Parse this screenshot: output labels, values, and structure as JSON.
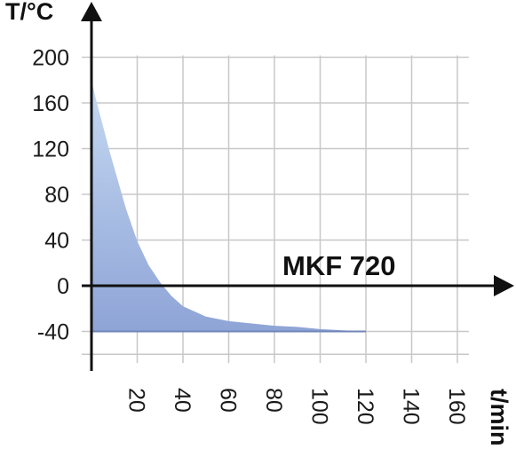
{
  "chart_data": {
    "type": "area",
    "xlabel": "t/min",
    "ylabel": "T/°C",
    "annotation": "MKF 720",
    "xlim": [
      0,
      165
    ],
    "ylim": [
      -70,
      200
    ],
    "x_ticks": [
      20,
      40,
      60,
      80,
      100,
      120,
      140,
      160
    ],
    "y_ticks": [
      200,
      160,
      120,
      80,
      40,
      0,
      -40
    ],
    "grid": true,
    "series": [
      {
        "x": [
          0,
          2,
          5,
          8,
          10,
          15,
          20,
          25,
          30,
          35,
          40,
          50,
          60,
          70,
          80,
          90,
          100,
          110,
          120
        ],
        "y": [
          180,
          163,
          140,
          117,
          103,
          68,
          39,
          18,
          3,
          -9,
          -18,
          -27,
          -31,
          -33,
          -35,
          -36,
          -38,
          -39,
          -40
        ]
      }
    ],
    "fill_colors": [
      "#c6d9f2",
      "#8ea4d6"
    ]
  }
}
